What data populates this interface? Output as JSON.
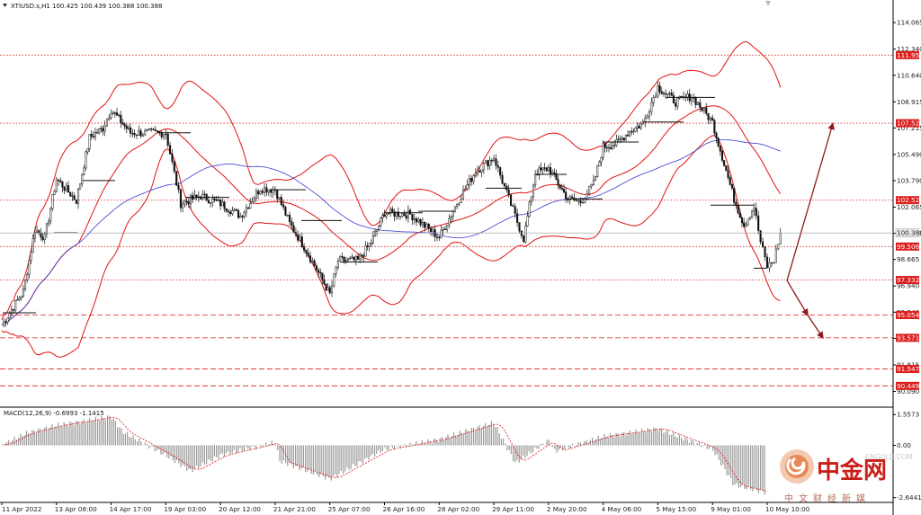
{
  "window": {
    "header_text": "XTIUSD.s,H1  100.425 100.439 100.388 100.388",
    "scroll_marker": "▼"
  },
  "chart_data": [
    {
      "type": "candlestick",
      "symbol": "XTIUSD.s",
      "timeframe": "H1",
      "ohlc_header": {
        "open": 100.425,
        "high": 100.439,
        "low": 100.388,
        "close": 100.388
      },
      "x_labels": [
        "11 Apr 2022",
        "13 Apr 08:00",
        "14 Apr 17:00",
        "19 Apr 03:00",
        "20 Apr 12:00",
        "21 Apr 21:00",
        "25 Apr 07:00",
        "26 Apr 16:00",
        "28 Apr 02:00",
        "29 Apr 11:00",
        "2 May 20:00",
        "4 May 06:00",
        "5 May 15:00",
        "9 May 01:00",
        "10 May 10:00"
      ],
      "y_ticks": [
        114.065,
        112.34,
        110.64,
        108.915,
        107.215,
        105.49,
        103.79,
        102.065,
        100.365,
        98.665,
        96.94,
        95.24,
        93.54,
        91.815,
        90.09
      ],
      "y_tick_labels": [
        "114.065",
        "112.340",
        "110.640",
        "108.915",
        "107.215",
        "105.490",
        "103.790",
        "102.065",
        "100.365",
        "98.665",
        "96.940",
        "95.240",
        "93.540",
        "91.815",
        "90.090"
      ],
      "ylim": [
        89.3,
        115.3
      ],
      "current_price": 100.388,
      "current_price_label": "100.388",
      "overlays": [
        "Bollinger Bands upper",
        "Bollinger Bands middle (MA)",
        "Bollinger Bands lower",
        "Moving average (blue)"
      ],
      "close_path": [
        {
          "x": "11 Apr 2022",
          "y": 94.4
        },
        {
          "x": "11 Apr 22:00",
          "y": 96.6
        },
        {
          "x": "12 Apr 10:00",
          "y": 100.6
        },
        {
          "x": "12 Apr 20:00",
          "y": 100.1
        },
        {
          "x": "13 Apr 08:00",
          "y": 103.9
        },
        {
          "x": "13 Apr 20:00",
          "y": 102.5
        },
        {
          "x": "14 Apr 04:00",
          "y": 106.6
        },
        {
          "x": "14 Apr 12:00",
          "y": 107.2
        },
        {
          "x": "14 Apr 17:00",
          "y": 108.4
        },
        {
          "x": "18 Apr 05:00",
          "y": 106.9
        },
        {
          "x": "19 Apr 03:00",
          "y": 106.9
        },
        {
          "x": "19 Apr 12:00",
          "y": 102.3
        },
        {
          "x": "20 Apr 00:00",
          "y": 102.8
        },
        {
          "x": "20 Apr 12:00",
          "y": 102.3
        },
        {
          "x": "21 Apr 00:00",
          "y": 101.5
        },
        {
          "x": "21 Apr 12:00",
          "y": 103.3
        },
        {
          "x": "21 Apr 21:00",
          "y": 103.2
        },
        {
          "x": "22 Apr 06:00",
          "y": 101.0
        },
        {
          "x": "22 Apr 15:00",
          "y": 99.5
        },
        {
          "x": "25 Apr 00:00",
          "y": 97.8
        },
        {
          "x": "25 Apr 07:00",
          "y": 96.4
        },
        {
          "x": "25 Apr 12:00",
          "y": 98.6
        },
        {
          "x": "26 Apr 00:00",
          "y": 98.6
        },
        {
          "x": "26 Apr 08:00",
          "y": 99.8
        },
        {
          "x": "26 Apr 16:00",
          "y": 101.7
        },
        {
          "x": "27 Apr 08:00",
          "y": 101.6
        },
        {
          "x": "28 Apr 02:00",
          "y": 100.1
        },
        {
          "x": "28 Apr 14:00",
          "y": 102.6
        },
        {
          "x": "29 Apr 00:00",
          "y": 104.4
        },
        {
          "x": "29 Apr 11:00",
          "y": 105.3
        },
        {
          "x": "29 Apr 20:00",
          "y": 102.6
        },
        {
          "x": "2 May 05:00",
          "y": 100.0
        },
        {
          "x": "2 May 12:00",
          "y": 104.3
        },
        {
          "x": "2 May 20:00",
          "y": 104.6
        },
        {
          "x": "3 May 08:00",
          "y": 102.6
        },
        {
          "x": "3 May 16:00",
          "y": 102.4
        },
        {
          "x": "4 May 00:00",
          "y": 103.6
        },
        {
          "x": "4 May 06:00",
          "y": 106.0
        },
        {
          "x": "4 May 14:00",
          "y": 106.2
        },
        {
          "x": "4 May 22:00",
          "y": 107.0
        },
        {
          "x": "5 May 06:00",
          "y": 107.5
        },
        {
          "x": "5 May 15:00",
          "y": 109.9
        },
        {
          "x": "6 May 02:00",
          "y": 108.9
        },
        {
          "x": "6 May 12:00",
          "y": 109.3
        },
        {
          "x": "9 May 01:00",
          "y": 107.6
        },
        {
          "x": "9 May 08:00",
          "y": 104.9
        },
        {
          "x": "9 May 14:00",
          "y": 102.6
        },
        {
          "x": "9 May 20:00",
          "y": 100.9
        },
        {
          "x": "10 May 02:00",
          "y": 102.1
        },
        {
          "x": "10 May 06:00",
          "y": 99.8
        },
        {
          "x": "10 May 10:00",
          "y": 98.2
        },
        {
          "x": "10 May 14:00",
          "y": 98.6
        },
        {
          "x": "10 May 18:00",
          "y": 100.388
        }
      ],
      "horizontal_levels": [
        {
          "price": 111.95,
          "label": "111.950",
          "color": "#dc1e1e",
          "style": "dotted"
        },
        {
          "price": 107.525,
          "label": "107.525",
          "color": "#dc1e1e",
          "style": "dotted"
        },
        {
          "price": 102.521,
          "label": "102.521",
          "color": "#dc1e1e",
          "style": "dotted"
        },
        {
          "price": 99.506,
          "label": "99.506",
          "color": "#dc1e1e",
          "style": "dotted"
        },
        {
          "price": 97.332,
          "label": "97.332",
          "color": "#dc1e1e",
          "style": "dotted"
        },
        {
          "price": 95.054,
          "label": "95.054",
          "color": "#dc1e1e",
          "style": "dashed"
        },
        {
          "price": 93.571,
          "label": "93.571",
          "color": "#dc1e1e",
          "style": "dashed"
        },
        {
          "price": 91.547,
          "label": "91.547",
          "color": "#dc1e1e",
          "style": "dashed"
        },
        {
          "price": 90.449,
          "label": "90.449",
          "color": "#dc1e1e",
          "style": "dashed"
        }
      ],
      "forecast_arrows": [
        {
          "from": 97.3,
          "to": 107.5,
          "color": "#8b1a1a"
        },
        {
          "from": 97.3,
          "to": 95.05,
          "color": "#8b1a1a"
        },
        {
          "from": 95.05,
          "to": 93.57,
          "color": "#8b1a1a"
        }
      ],
      "grid": false
    },
    {
      "type": "bar",
      "indicator": "MACD(12,26,9)",
      "header_text": "MACD(12,26,9) -0.6993 -1.1415",
      "main_value": -0.6993,
      "signal_value": -1.1415,
      "y_ticks": [
        1.5573,
        0.0,
        -2.6441
      ],
      "y_tick_labels": [
        "1.5573",
        "0.00",
        "-2.6441"
      ],
      "ylim": [
        -2.75,
        1.75
      ],
      "histogram_shape": [
        {
          "x": "11 Apr 2022",
          "value": 0.0
        },
        {
          "x": "12 Apr 2022",
          "value": 0.6
        },
        {
          "x": "13 Apr 08:00",
          "value": 1.0
        },
        {
          "x": "14 Apr 17:00",
          "value": 1.45
        },
        {
          "x": "18 Apr 2022",
          "value": 0.7
        },
        {
          "x": "19 Apr 03:00",
          "value": -0.5
        },
        {
          "x": "19 Apr 18:00",
          "value": -1.3
        },
        {
          "x": "20 Apr 12:00",
          "value": -0.5
        },
        {
          "x": "21 Apr 21:00",
          "value": 0.15
        },
        {
          "x": "22 Apr 2022",
          "value": -0.8
        },
        {
          "x": "25 Apr 07:00",
          "value": -1.7
        },
        {
          "x": "26 Apr 16:00",
          "value": -0.2
        },
        {
          "x": "28 Apr 02:00",
          "value": 0.3
        },
        {
          "x": "29 Apr 11:00",
          "value": 1.15
        },
        {
          "x": "2 May 2022",
          "value": -0.9
        },
        {
          "x": "2 May 20:00",
          "value": 0.25
        },
        {
          "x": "3 May 2022",
          "value": -0.3
        },
        {
          "x": "4 May 06:00",
          "value": 0.45
        },
        {
          "x": "5 May 15:00",
          "value": 0.85
        },
        {
          "x": "9 May 01:00",
          "value": -0.2
        },
        {
          "x": "9 May 14:00",
          "value": -2.0
        },
        {
          "x": "10 May 10:00",
          "value": -2.4
        },
        {
          "x": "10 May 18:00",
          "value": -0.7
        }
      ]
    }
  ],
  "logo": {
    "name": "中金网",
    "url": "CNGOLD.COM",
    "tagline": "中文财经新媒"
  },
  "colors": {
    "candle": "#111111",
    "bollinger": "#e31212",
    "moving_average": "#3a3ad2",
    "levels": "#dc1e1e",
    "arrows": "#8b1a1a",
    "macd_histogram": "#9a9a9a",
    "macd_signal": "#e31212",
    "price_badge": "#e8e8e8"
  }
}
